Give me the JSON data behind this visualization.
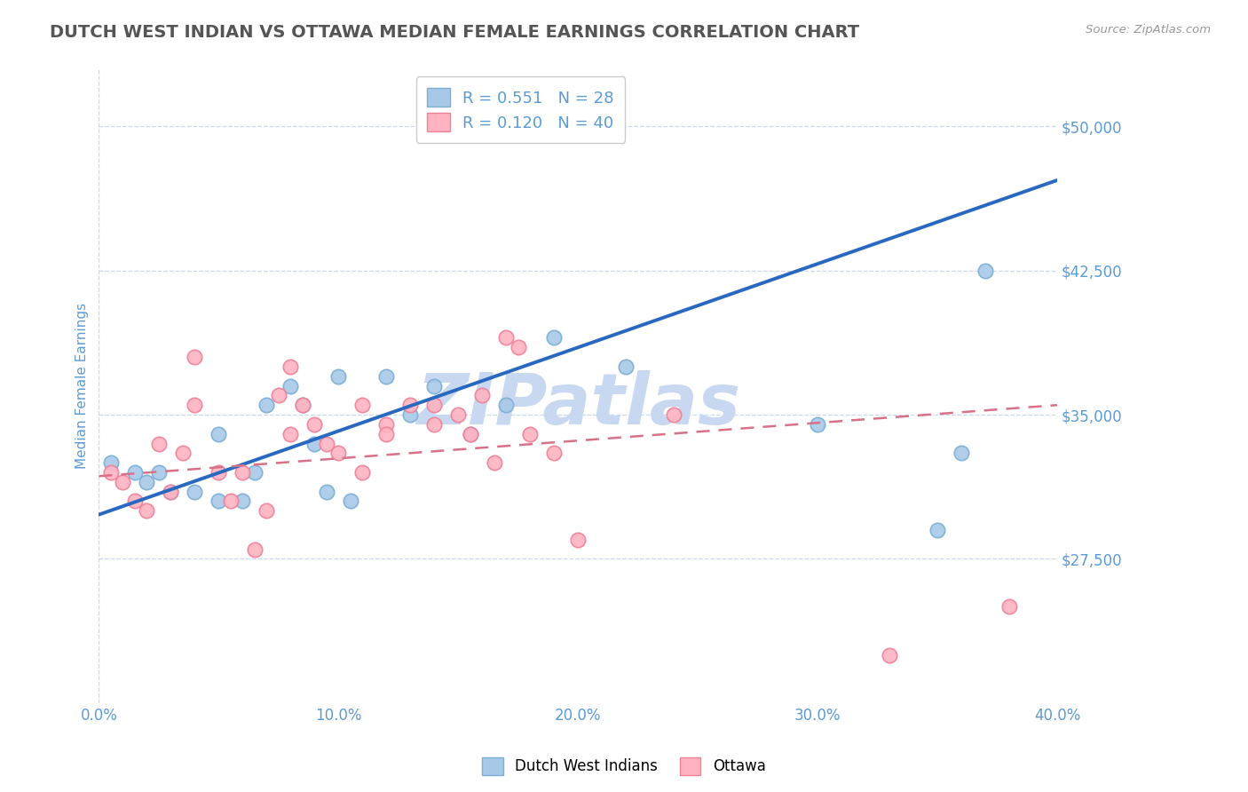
{
  "title": "DUTCH WEST INDIAN VS OTTAWA MEDIAN FEMALE EARNINGS CORRELATION CHART",
  "source_text": "Source: ZipAtlas.com",
  "ylabel": "Median Female Earnings",
  "x_min": 0.0,
  "x_max": 0.4,
  "y_min": 20000,
  "y_max": 53000,
  "yticks": [
    27500,
    35000,
    42500,
    50000
  ],
  "ytick_labels": [
    "$27,500",
    "$35,000",
    "$42,500",
    "$50,000"
  ],
  "xticks": [
    0.0,
    0.1,
    0.2,
    0.3,
    0.4
  ],
  "xtick_labels": [
    "0.0%",
    "10.0%",
    "20.0%",
    "30.0%",
    "40.0%"
  ],
  "blue_scatter_color": "#A8C8E8",
  "blue_edge_color": "#7AAFD4",
  "pink_scatter_color": "#FFB3C1",
  "pink_edge_color": "#F08098",
  "trend_blue_color": "#2868C0",
  "trend_pink_color": "#D87088",
  "legend_R_blue": "R = 0.551",
  "legend_N_blue": "N = 28",
  "legend_R_pink": "R = 0.120",
  "legend_N_pink": "N = 40",
  "title_color": "#555555",
  "axis_label_color": "#5B9BD5",
  "tick_label_color": "#5B9BD5",
  "source_color": "#999999",
  "watermark": "ZIPatlas",
  "watermark_color": "#C8D8F0",
  "grid_color": "#C8D8F0",
  "blue_scatter_x": [
    0.005,
    0.015,
    0.02,
    0.025,
    0.03,
    0.04,
    0.05,
    0.05,
    0.06,
    0.065,
    0.07,
    0.08,
    0.085,
    0.09,
    0.095,
    0.1,
    0.105,
    0.12,
    0.13,
    0.14,
    0.155,
    0.17,
    0.19,
    0.22,
    0.3,
    0.35,
    0.36,
    0.37
  ],
  "blue_scatter_y": [
    32500,
    32000,
    31500,
    32000,
    31000,
    31000,
    34000,
    30500,
    30500,
    32000,
    35500,
    36500,
    35500,
    33500,
    31000,
    37000,
    30500,
    37000,
    35000,
    36500,
    34000,
    35500,
    39000,
    37500,
    34500,
    29000,
    33000,
    42500
  ],
  "pink_scatter_x": [
    0.005,
    0.01,
    0.015,
    0.02,
    0.025,
    0.03,
    0.035,
    0.04,
    0.04,
    0.05,
    0.055,
    0.06,
    0.065,
    0.07,
    0.075,
    0.08,
    0.08,
    0.085,
    0.09,
    0.095,
    0.1,
    0.11,
    0.11,
    0.12,
    0.12,
    0.13,
    0.14,
    0.14,
    0.15,
    0.155,
    0.16,
    0.165,
    0.17,
    0.175,
    0.18,
    0.19,
    0.2,
    0.24,
    0.33,
    0.38
  ],
  "pink_scatter_y": [
    32000,
    31500,
    30500,
    30000,
    33500,
    31000,
    33000,
    38000,
    35500,
    32000,
    30500,
    32000,
    28000,
    30000,
    36000,
    34000,
    37500,
    35500,
    34500,
    33500,
    33000,
    32000,
    35500,
    34500,
    34000,
    35500,
    35500,
    34500,
    35000,
    34000,
    36000,
    32500,
    39000,
    38500,
    34000,
    33000,
    28500,
    35000,
    22500,
    25000
  ],
  "blue_trend_x": [
    0.0,
    0.4
  ],
  "blue_trend_y": [
    29800,
    47200
  ],
  "pink_trend_x": [
    0.0,
    0.4
  ],
  "pink_trend_y": [
    31800,
    35500
  ],
  "dot_size": 140
}
